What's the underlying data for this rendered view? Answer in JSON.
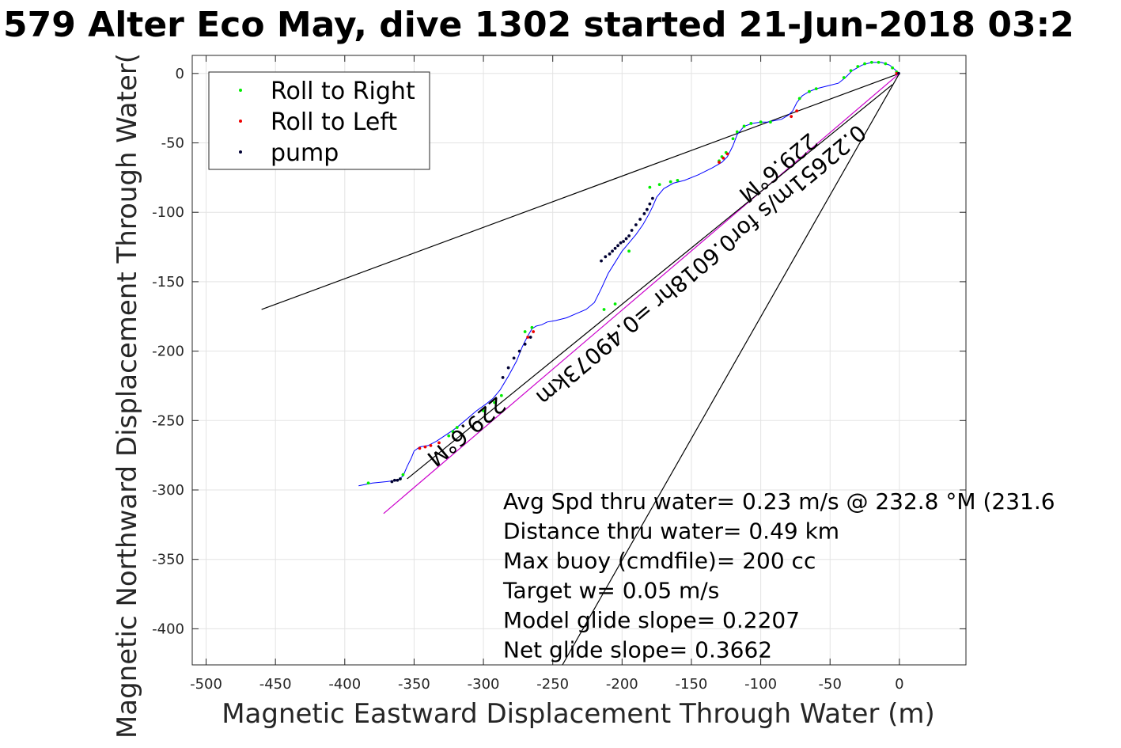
{
  "chart_data": {
    "type": "scatter",
    "title": "579 Alter Eco May, dive 1302 started 21-Jun-2018 03:2",
    "xlabel": "Magnetic Eastward Displacement Through Water (m)",
    "ylabel": "Magnetic Northward Displacement Through Water(",
    "xlim": [
      -510,
      48
    ],
    "ylim": [
      -426,
      13
    ],
    "xticks": [
      "-500",
      "-450",
      "-400",
      "-350",
      "-300",
      "-250",
      "-200",
      "-150",
      "-100",
      "-50",
      "0"
    ],
    "yticks": [
      "0",
      "-50",
      "-100",
      "-150",
      "-200",
      "-250",
      "-300",
      "-350",
      "-400"
    ],
    "grid": true,
    "legend_position": "top-left",
    "legend": [
      {
        "name": "Roll to Right",
        "color": "#00ee00"
      },
      {
        "name": "Roll to Left",
        "color": "#ee0000"
      },
      {
        "name": "pump",
        "color": "#000033"
      }
    ],
    "track": {
      "color": "#0000ff",
      "x": [
        -390,
        -380,
        -370,
        -362,
        -358,
        -355,
        -352,
        -350,
        -346,
        -340,
        -334,
        -328,
        -322,
        -318,
        -312,
        -305,
        -298,
        -293,
        -288,
        -282,
        -276,
        -272,
        -268,
        -265,
        -262,
        -258,
        -254,
        -248,
        -240,
        -233,
        -226,
        -220,
        -215,
        -210,
        -205,
        -200,
        -195,
        -190,
        -185,
        -181,
        -178,
        -175,
        -170,
        -163,
        -155,
        -145,
        -135,
        -128,
        -124,
        -120,
        -117,
        -112,
        -106,
        -100,
        -95,
        -90,
        -85,
        -80,
        -77,
        -74,
        -70,
        -65,
        -60,
        -52,
        -44,
        -39,
        -34,
        -27,
        -20,
        -13,
        -7,
        0
      ],
      "y": [
        -297,
        -295,
        -294,
        -293,
        -290,
        -283,
        -277,
        -272,
        -269,
        -268,
        -265,
        -261,
        -257,
        -254,
        -249,
        -243,
        -238,
        -234,
        -228,
        -218,
        -207,
        -197,
        -189,
        -184,
        -182,
        -181,
        -179,
        -178,
        -176,
        -173,
        -170,
        -165,
        -155,
        -144,
        -136,
        -128,
        -122,
        -116,
        -109,
        -102,
        -96,
        -89,
        -83,
        -79,
        -77,
        -73,
        -68,
        -64,
        -60,
        -52,
        -44,
        -38,
        -36,
        -35,
        -35,
        -34,
        -33,
        -30,
        -27,
        -21,
        -16,
        -13,
        -11,
        -9,
        -7,
        -3,
        2,
        6,
        8,
        8,
        6,
        0
      ]
    },
    "roll_right": {
      "x": [
        -383,
        -360,
        -358,
        -325,
        -322,
        -319,
        -300,
        -292,
        -287,
        -270,
        -265,
        -213,
        -205,
        -195,
        -180,
        -173,
        -165,
        -160,
        -130,
        -128,
        -125,
        -120,
        -117,
        -112,
        -107,
        -100,
        -93,
        -72,
        -65,
        -60,
        -40,
        -35,
        -30,
        -25,
        -20,
        -15,
        -10,
        -5,
        -2
      ],
      "y": [
        -295,
        -292,
        -289,
        -261,
        -258,
        -255,
        -243,
        -237,
        -232,
        -186,
        -183,
        -170,
        -166,
        -128,
        -82,
        -80,
        -78,
        -77,
        -63,
        -60,
        -57,
        -47,
        -42,
        -38,
        -36,
        -35,
        -35,
        -18,
        -13,
        -11,
        -3,
        2,
        5,
        7,
        8,
        8,
        7,
        4,
        1
      ],
      "color": "#00ee00"
    },
    "roll_left": {
      "x": [
        -346,
        -342,
        -338,
        -332,
        -268,
        -264,
        -130,
        -127,
        -124,
        -78,
        -74,
        -2
      ],
      "y": [
        -270,
        -269,
        -268,
        -266,
        -190,
        -186,
        -64,
        -61,
        -58,
        -31,
        -27,
        0
      ],
      "color": "#ee0000"
    },
    "pump": {
      "x": [
        -366,
        -364,
        -362,
        -360,
        -286,
        -282,
        -278,
        -274,
        -270,
        -266,
        -215,
        -212,
        -209,
        -207,
        -205,
        -203,
        -201,
        -199,
        -197,
        -195,
        -193,
        -190,
        -187,
        -184,
        -182,
        -180,
        -178,
        -0.5
      ],
      "y": [
        -294,
        -293,
        -293,
        -292,
        -219,
        -212,
        -205,
        -200,
        -195,
        -190,
        -135,
        -132,
        -130,
        -128,
        -126,
        -124,
        -122,
        -121,
        -119,
        -117,
        -113,
        -109,
        -105,
        -101,
        -98,
        -94,
        -90,
        0
      ],
      "color": "#000033"
    },
    "lines": [
      {
        "color": "#000000",
        "x": [
          -460,
          0
        ],
        "y": [
          -170,
          0
        ]
      },
      {
        "color": "#000000",
        "x": [
          -243,
          0
        ],
        "y": [
          -426,
          0
        ]
      },
      {
        "color": "#cc00cc",
        "x": [
          -372,
          0
        ],
        "y": [
          -317,
          0
        ]
      },
      {
        "color": "#000000",
        "x": [
          -355,
          -5
        ],
        "y": [
          -292,
          -8
        ]
      }
    ],
    "rotated_labels": [
      {
        "text": "229.6°M",
        "x": -290,
        "y": -232,
        "angle": 140
      },
      {
        "text": "229.6°M",
        "x": -65,
        "y": -42,
        "angle": 140
      },
      {
        "text": "0.22651m/s for0.6018hr =0.49073km",
        "x": -30,
        "y": -36,
        "angle": 140
      }
    ],
    "annotations": [
      "Avg Spd thru water=  0.23 m/s @ 232.8 °M (231.6",
      "Distance thru water=  0.49 km",
      "Max buoy (cmdfile)= 200 cc",
      "Target w= 0.05 m/s",
      "Model glide slope= 0.2207",
      "Net glide slope= 0.3662"
    ]
  }
}
